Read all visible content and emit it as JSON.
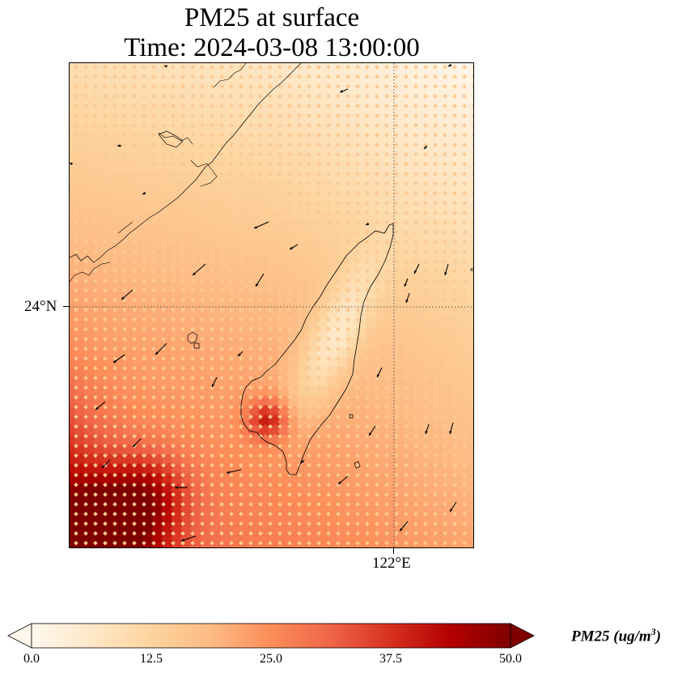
{
  "figure": {
    "title_line1": "PM25 at surface",
    "title_line2": "Time: 2024-03-08 13:00:00"
  },
  "map": {
    "projection": "lat-lon",
    "gridlines_style": "dotted",
    "gridlines": {
      "latitude": {
        "value": 24,
        "label": "24°N"
      },
      "longitude": {
        "value": 122,
        "label": "122°E"
      }
    },
    "features": [
      "Taiwan coastline",
      "Fujian coastline",
      "Penghu islands",
      "wind vectors"
    ],
    "plume_description": "higher PM25 concentrations over the Taiwan Strait southwest of Taiwan, highest near lower-left corner; minimum over the Central Mountain Range",
    "colormap": "OrRd"
  },
  "colorbar": {
    "min": 0.0,
    "max": 50.0,
    "extend": "both",
    "tick_labels": [
      "0.0",
      "12.5",
      "25.0",
      "37.5",
      "50.0"
    ],
    "label_main": "PM25 (ug/m",
    "label_sup": "3",
    "label_close": ")",
    "colors": [
      "#fff7ec",
      "#fee8c8",
      "#fdd49e",
      "#fdbb84",
      "#fc8d59",
      "#ef6548",
      "#d7301f",
      "#b30000",
      "#7f0000"
    ]
  }
}
